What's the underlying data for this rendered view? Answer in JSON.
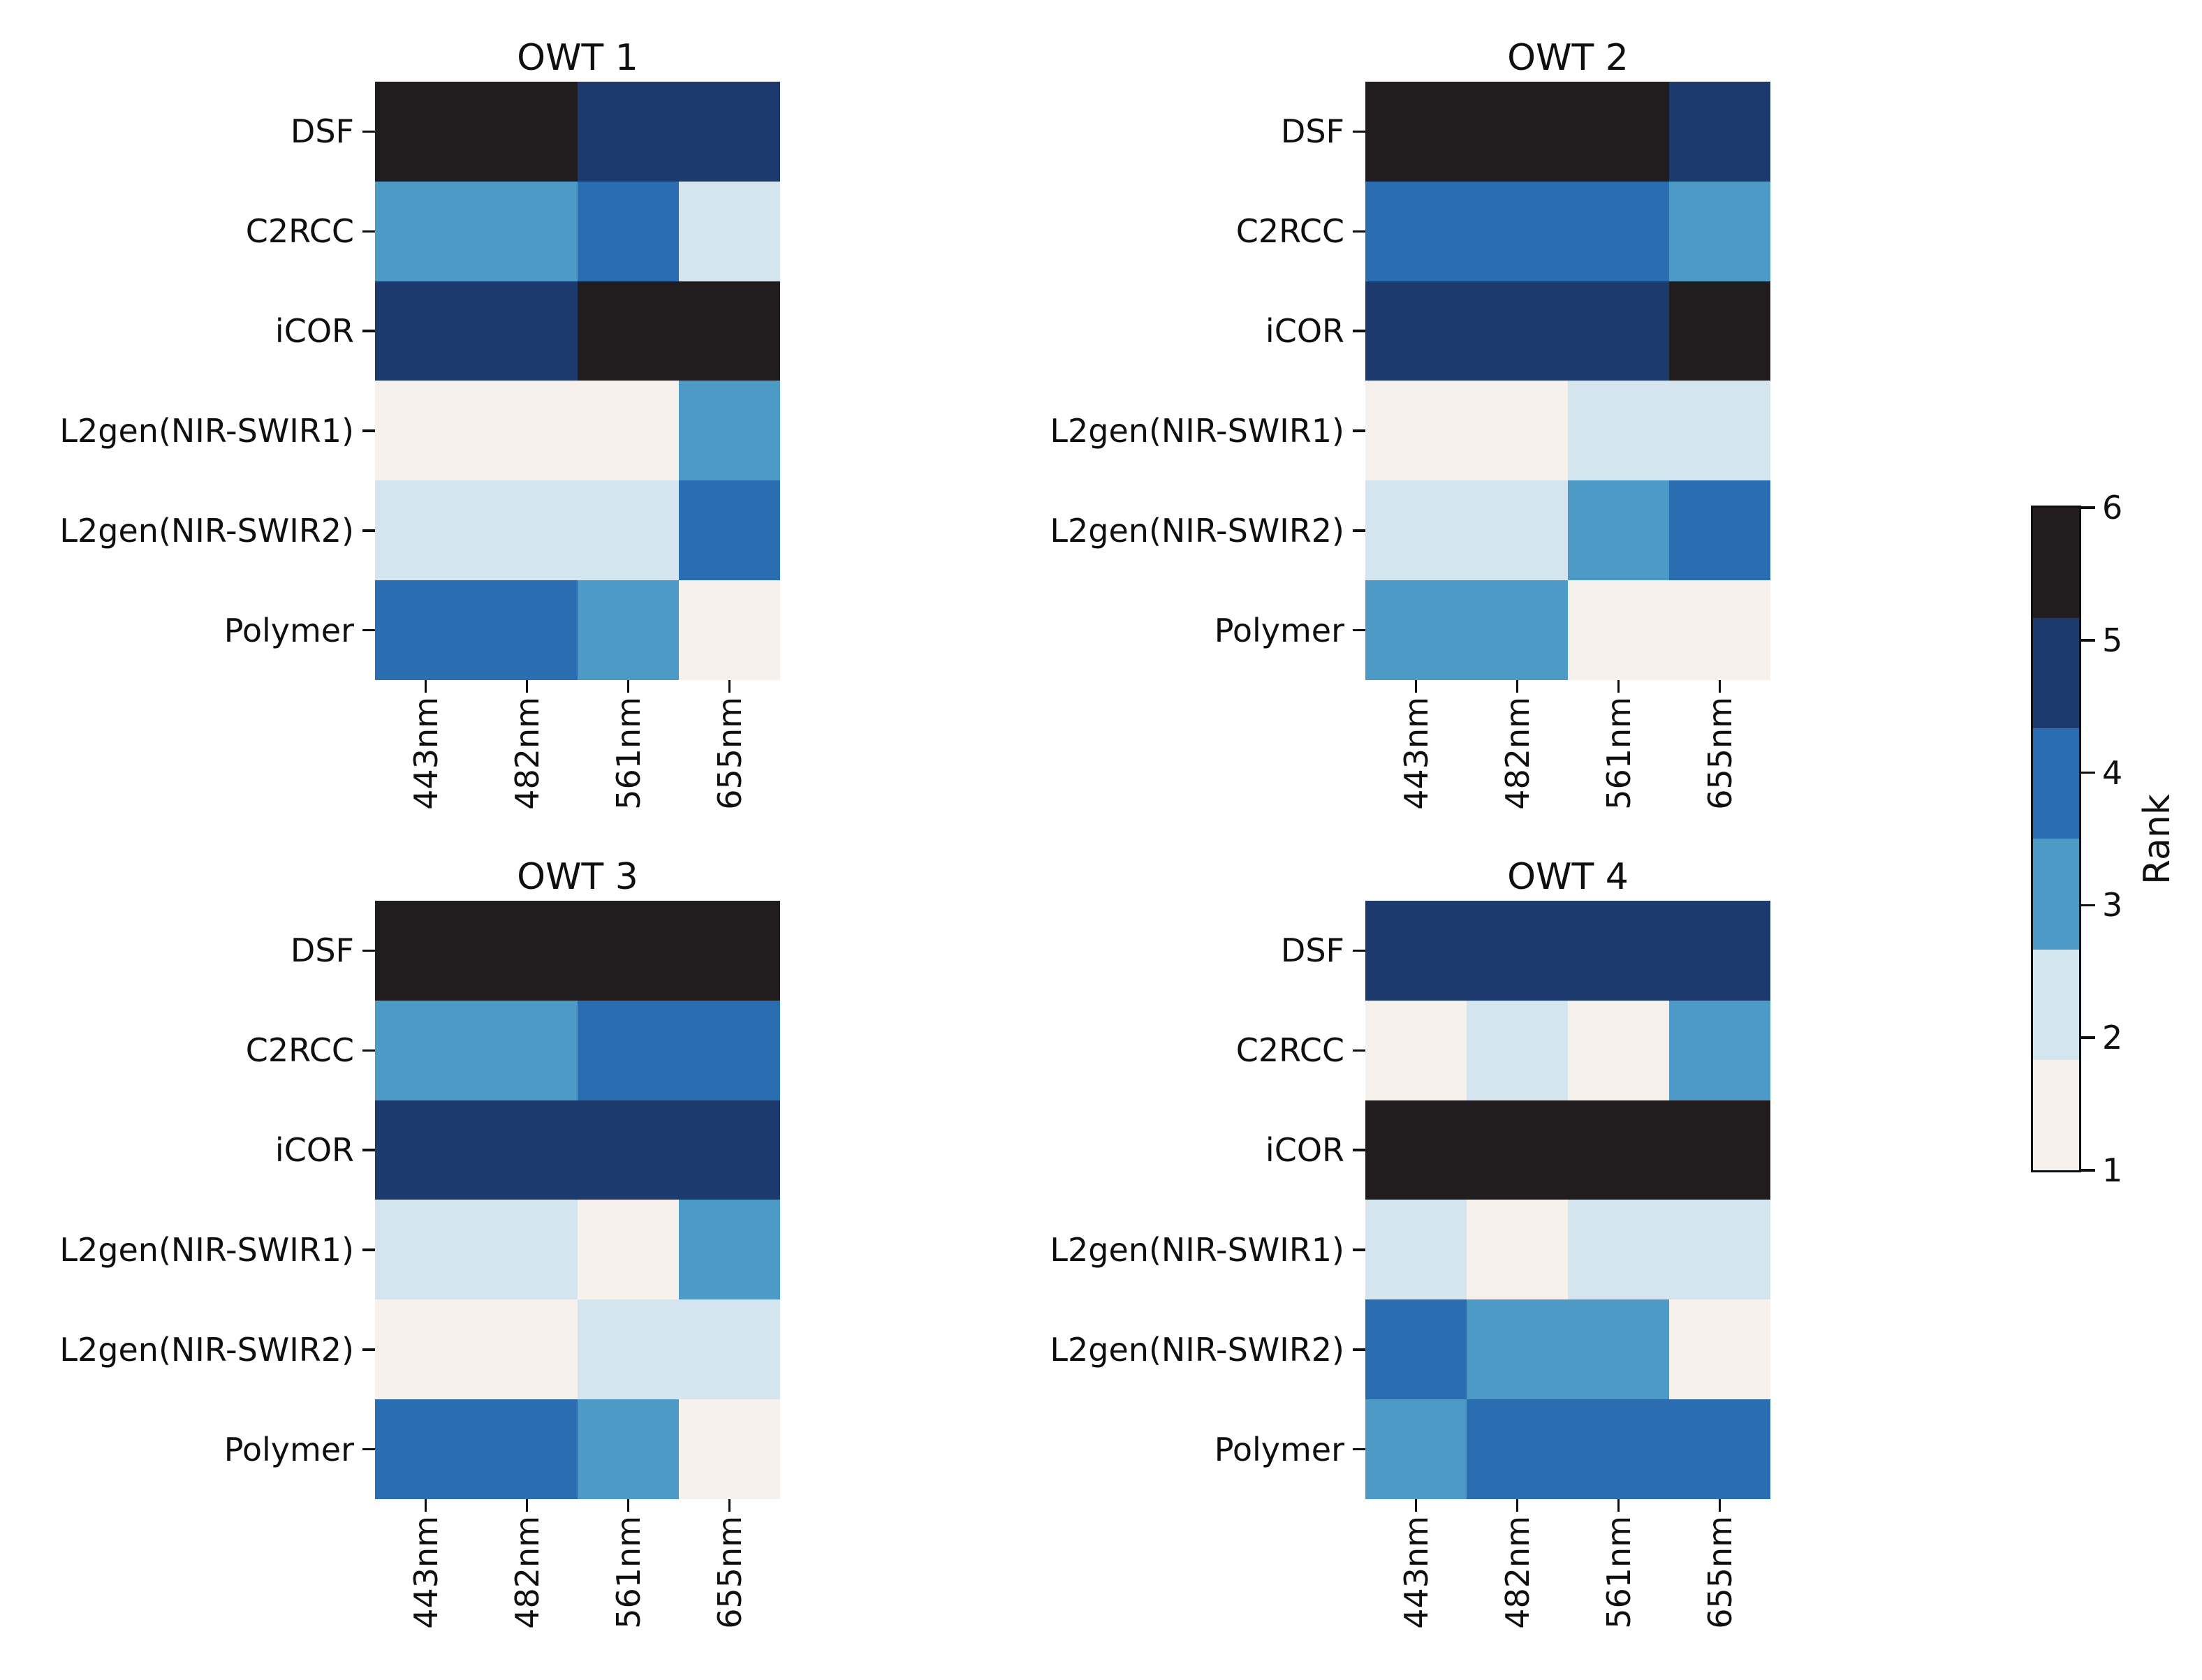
{
  "chart_data": {
    "type": "heatmap",
    "layout_hint": "2x2 grid of ranked heatmaps sharing one discrete colorbar on the right",
    "rows": [
      "DSF",
      "C2RCC",
      "iCOR",
      "L2gen(NIR-SWIR1)",
      "L2gen(NIR-SWIR2)",
      "Polymer"
    ],
    "columns": [
      "443nm",
      "482nm",
      "561nm",
      "655nm"
    ],
    "panels": [
      {
        "title": "OWT 1",
        "values": [
          [
            6,
            6,
            5,
            5
          ],
          [
            3,
            3,
            4,
            2
          ],
          [
            5,
            5,
            6,
            6
          ],
          [
            1,
            1,
            1,
            3
          ],
          [
            2,
            2,
            2,
            4
          ],
          [
            4,
            4,
            3,
            1
          ]
        ]
      },
      {
        "title": "OWT 2",
        "values": [
          [
            6,
            6,
            6,
            5
          ],
          [
            4,
            4,
            4,
            3
          ],
          [
            5,
            5,
            5,
            6
          ],
          [
            1,
            1,
            2,
            2
          ],
          [
            2,
            2,
            3,
            4
          ],
          [
            3,
            3,
            1,
            1
          ]
        ]
      },
      {
        "title": "OWT 3",
        "values": [
          [
            6,
            6,
            6,
            6
          ],
          [
            3,
            3,
            4,
            4
          ],
          [
            5,
            5,
            5,
            5
          ],
          [
            2,
            2,
            1,
            3
          ],
          [
            1,
            1,
            2,
            2
          ],
          [
            4,
            4,
            3,
            1
          ]
        ]
      },
      {
        "title": "OWT 4",
        "values": [
          [
            5,
            5,
            5,
            5
          ],
          [
            1,
            2,
            1,
            3
          ],
          [
            6,
            6,
            6,
            6
          ],
          [
            2,
            1,
            2,
            2
          ],
          [
            4,
            3,
            3,
            1
          ],
          [
            3,
            4,
            4,
            4
          ]
        ]
      }
    ],
    "colorbar": {
      "label": "Rank",
      "tick_labels_top_to_bottom": [
        "6",
        "5",
        "4",
        "3",
        "2",
        "1"
      ],
      "range": [
        1,
        6
      ],
      "discrete_levels": 6
    },
    "rank_colors": {
      "1": "#f6f1ec",
      "2": "#d5e5f0",
      "3": "#4d9ac6",
      "4": "#2a6eb1",
      "5": "#1c3a6e",
      "6": "#211d1e"
    }
  }
}
